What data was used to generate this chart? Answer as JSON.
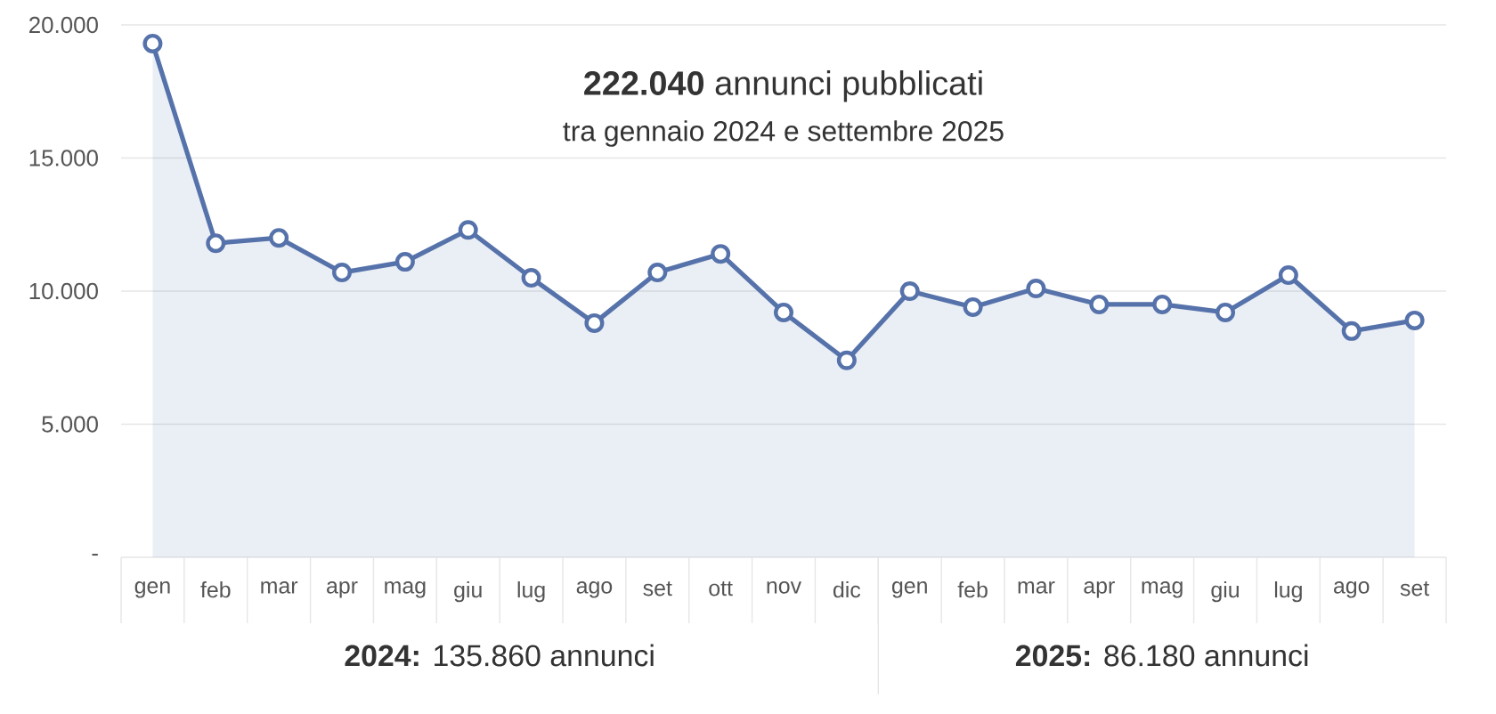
{
  "chart_data": {
    "type": "area",
    "title": "**222.040** annunci pubblicati",
    "subtitle": "tra gennaio 2024 e settembre 2025",
    "categories": [
      "gen",
      "feb",
      "mar",
      "apr",
      "mag",
      "giu",
      "lug",
      "ago",
      "set",
      "ott",
      "nov",
      "dic",
      "gen",
      "feb",
      "mar",
      "apr",
      "mag",
      "giu",
      "lug",
      "ago",
      "set"
    ],
    "series": [
      {
        "color": "#5672aa",
        "values": [
          19300,
          11800,
          12000,
          10700,
          11100,
          12300,
          10500,
          8800,
          10700,
          11400,
          9200,
          7400,
          10000,
          9400,
          10100,
          9500,
          9500,
          9200,
          10600,
          8500,
          8900
        ]
      }
    ],
    "ylim": [
      0,
      20000
    ],
    "yticks": [
      {
        "value": 0,
        "label": "-"
      },
      {
        "value": 5000,
        "label": "5.000"
      },
      {
        "value": 10000,
        "label": "10.000"
      },
      {
        "value": 15000,
        "label": "15.000"
      },
      {
        "value": 20000,
        "label": "20.000"
      }
    ],
    "grid": "y",
    "marker": "circle",
    "annotations": [
      "**2024:** 135.860 annunci",
      "**2025:** 86.180 annunci"
    ]
  }
}
